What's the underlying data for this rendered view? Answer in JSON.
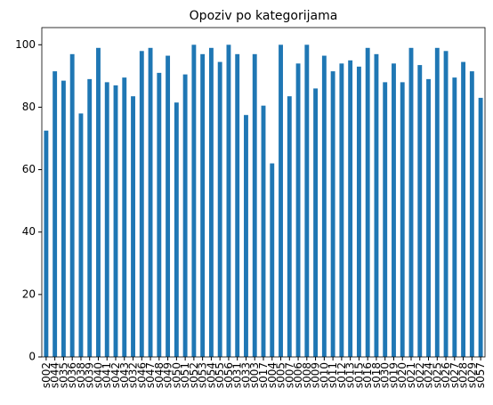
{
  "chart_data": {
    "type": "bar",
    "title": "Opoziv po kategorijama",
    "categories": [
      "s002",
      "s044",
      "s035",
      "s036",
      "s038",
      "s039",
      "s040",
      "s041",
      "s042",
      "s043",
      "s032",
      "s046",
      "s047",
      "s048",
      "s049",
      "s050",
      "s051",
      "s052",
      "s053",
      "s054",
      "s055",
      "s056",
      "s031",
      "s033",
      "s003",
      "s017",
      "s004",
      "s005",
      "s007",
      "s006",
      "s008",
      "s009",
      "s010",
      "s011",
      "s012",
      "s013",
      "s015",
      "s016",
      "s018",
      "s030",
      "s019",
      "s020",
      "s021",
      "s022",
      "s024",
      "s025",
      "s026",
      "s027",
      "s028",
      "s029",
      "s057"
    ],
    "values": [
      72.5,
      91.5,
      88.5,
      97,
      78,
      89,
      99,
      88,
      87,
      89.5,
      83.5,
      98,
      99,
      91,
      96.5,
      81.5,
      90.5,
      100,
      97,
      99,
      94.5,
      100,
      97,
      77.5,
      97,
      80.5,
      62,
      100,
      83.5,
      94,
      100,
      86,
      96.5,
      91.5,
      94,
      95,
      93,
      99,
      97,
      88,
      94,
      88,
      99,
      93.5,
      89,
      99,
      98,
      89.5,
      94.5,
      91.5,
      83
    ],
    "color": "#1f77b4",
    "ylim": [
      0,
      105.5
    ],
    "yticks": [
      0,
      20,
      40,
      60,
      80,
      100
    ]
  }
}
